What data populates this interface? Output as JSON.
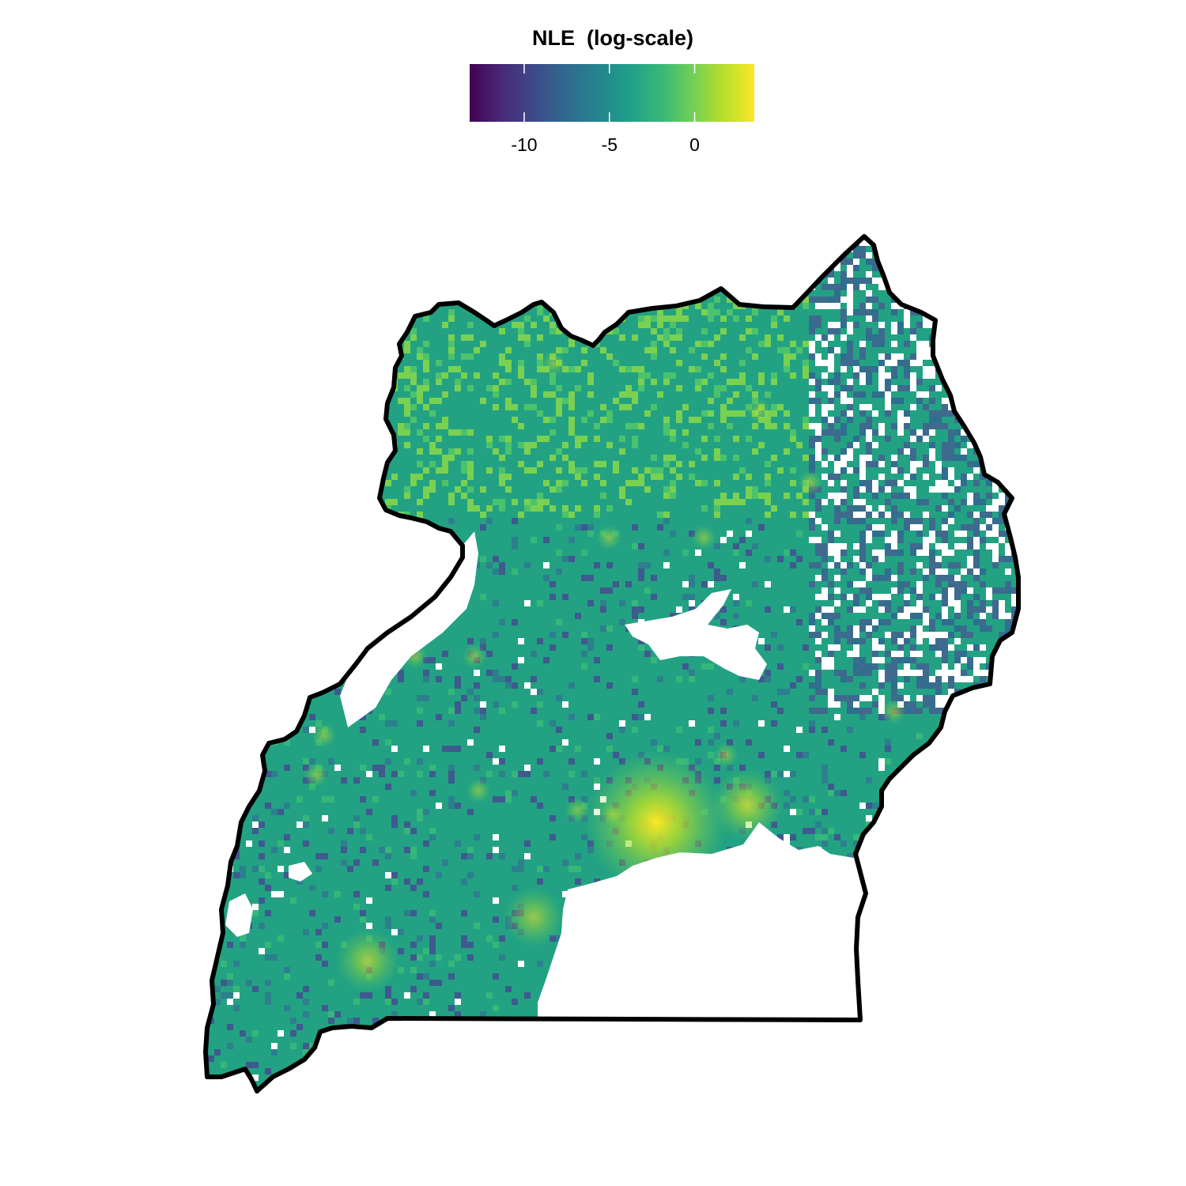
{
  "legend": {
    "title": "NLE  (log-scale)",
    "min": -13.2,
    "max": 3.5,
    "ticks": [
      {
        "value": -10,
        "label": "-10"
      },
      {
        "value": -5,
        "label": "-5"
      },
      {
        "value": 0,
        "label": "0"
      }
    ],
    "colormap": [
      "#440154",
      "#482878",
      "#3e4989",
      "#31688e",
      "#26828e",
      "#1f9e89",
      "#35b779",
      "#6ece58",
      "#b5de2b",
      "#fde725"
    ]
  },
  "map": {
    "region_fill_color": "#22a283",
    "border_color": "#000000",
    "hotspots": [
      {
        "name": "",
        "intensity": 1.0
      },
      {
        "name": "",
        "intensity": 0.7
      },
      {
        "name": "",
        "intensity": 0.6
      },
      {
        "name": "",
        "intensity": 0.55
      }
    ]
  }
}
